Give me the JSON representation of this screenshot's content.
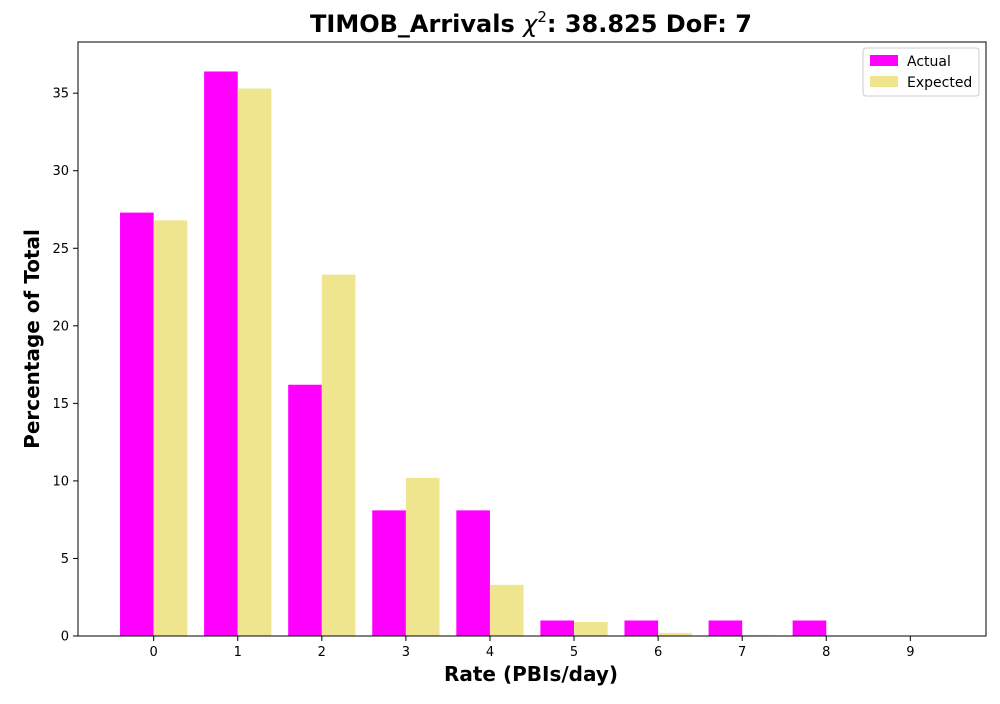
{
  "chart_data": {
    "type": "bar",
    "title_prefix": "TIMOB_Arrivals ",
    "title_chi": "χ",
    "title_sup": "2",
    "title_suffix": ": 38.825 DoF: 7",
    "xlabel": "Rate (PBIs/day)",
    "ylabel": "Percentage of Total",
    "categories": [
      "0",
      "1",
      "2",
      "3",
      "4",
      "5",
      "6",
      "7",
      "8",
      "9"
    ],
    "x_ticks": [
      0,
      1,
      2,
      3,
      4,
      5,
      6,
      7,
      8,
      9
    ],
    "y_ticks": [
      0,
      5,
      10,
      15,
      20,
      25,
      30,
      35
    ],
    "ylim": [
      0,
      38.3
    ],
    "xlim": [
      -0.9,
      9.9
    ],
    "grid": false,
    "legend_position": "top-right",
    "series": [
      {
        "name": "Actual",
        "color": "#ff00ff",
        "x": [
          0,
          1,
          2,
          3,
          4,
          5,
          6,
          7,
          8
        ],
        "values": [
          27.3,
          36.4,
          16.2,
          8.1,
          8.1,
          1.0,
          1.0,
          1.0,
          1.0
        ]
      },
      {
        "name": "Expected",
        "color": "#eee58e",
        "x": [
          0,
          1,
          2,
          3,
          4,
          5,
          6,
          7,
          8
        ],
        "values": [
          26.8,
          35.3,
          23.3,
          10.2,
          3.3,
          0.9,
          0.2,
          0.05,
          0.01
        ]
      }
    ]
  }
}
